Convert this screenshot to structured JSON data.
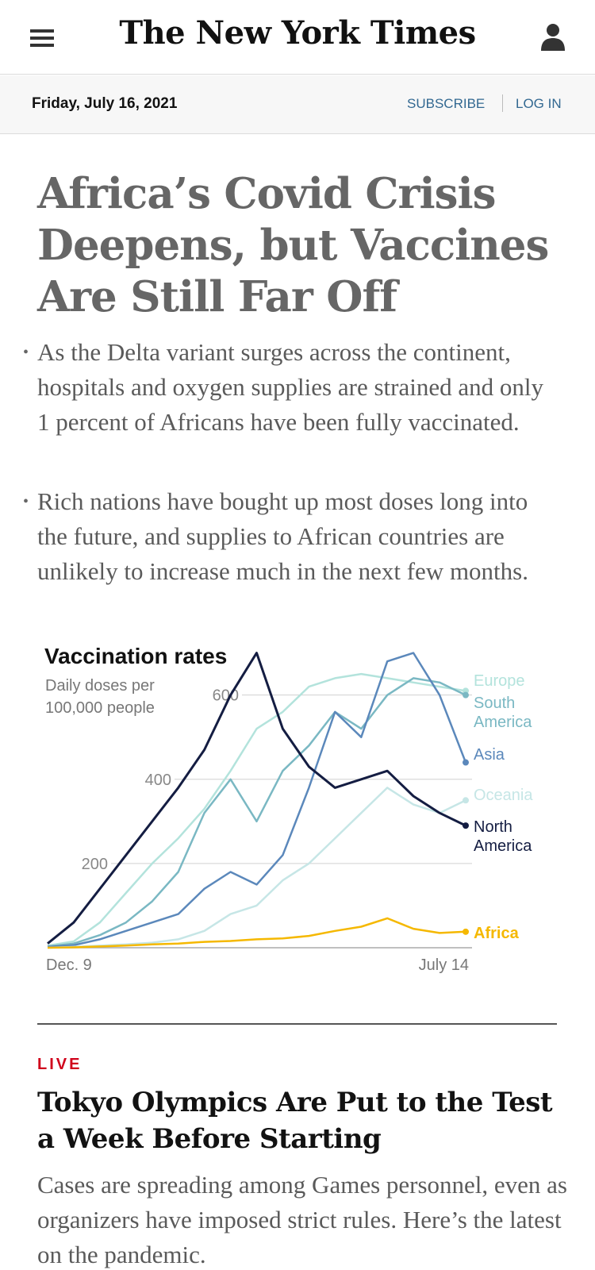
{
  "header": {
    "logo": "The New York Times",
    "menu_icon": "hamburger-menu-icon",
    "user_icon": "user-account-icon"
  },
  "datebar": {
    "date": "Friday, July 16, 2021",
    "subscribe_label": "SUBSCRIBE",
    "login_label": "LOG IN"
  },
  "story1": {
    "headline": "Africa’s Covid Crisis Deepens, but Vaccines Are Still Far Off",
    "summary": [
      "As the Delta variant surges across the continent, hospitals and oxygen supplies are strained and only 1 percent of Africans have been fully vaccinated.",
      "Rich nations have bought up most doses long into the future, and supplies to African countries are unlikely to increase much in the next few months."
    ]
  },
  "chart_data": {
    "type": "line",
    "title": "Vaccination rates",
    "ylabel": "Daily doses per 100,000 people",
    "y_ticks": [
      200,
      400,
      600
    ],
    "ylim": [
      0,
      720
    ],
    "x_tick_labels": [
      "Dec. 9",
      "July 14"
    ],
    "x": [
      "Dec. 9",
      "Dec. 23",
      "Jan. 6",
      "Jan. 20",
      "Feb. 3",
      "Feb. 17",
      "Mar. 3",
      "Mar. 17",
      "Mar. 31",
      "Apr. 14",
      "Apr. 28",
      "May 12",
      "May 26",
      "June 9",
      "June 23",
      "July 7",
      "July 14"
    ],
    "grid": true,
    "series": [
      {
        "name": "Europe",
        "color": "#b3e3dc",
        "values": [
          5,
          15,
          60,
          130,
          200,
          260,
          330,
          420,
          520,
          560,
          620,
          640,
          650,
          640,
          630,
          620,
          610
        ]
      },
      {
        "name": "South America",
        "color": "#7ab8c3",
        "values": [
          3,
          10,
          30,
          60,
          110,
          180,
          320,
          400,
          300,
          420,
          480,
          560,
          520,
          600,
          640,
          630,
          600
        ]
      },
      {
        "name": "Asia",
        "color": "#5b88bb",
        "values": [
          2,
          6,
          20,
          40,
          60,
          80,
          140,
          180,
          150,
          220,
          380,
          560,
          500,
          680,
          700,
          600,
          440
        ]
      },
      {
        "name": "Oceania",
        "color": "#c6e6e6",
        "values": [
          0,
          2,
          5,
          8,
          12,
          20,
          40,
          80,
          100,
          160,
          200,
          260,
          320,
          380,
          340,
          320,
          350
        ]
      },
      {
        "name": "North America",
        "color": "#141d42",
        "values": [
          10,
          60,
          140,
          220,
          300,
          380,
          470,
          600,
          700,
          520,
          430,
          380,
          400,
          420,
          360,
          320,
          290
        ]
      },
      {
        "name": "Africa",
        "color": "#f5b800",
        "values": [
          0,
          1,
          3,
          5,
          8,
          10,
          14,
          16,
          20,
          22,
          28,
          40,
          50,
          70,
          45,
          35,
          38
        ]
      }
    ],
    "label_positions": {
      "Europe": "top",
      "Oceania": "middle",
      "Africa": "bottom"
    }
  },
  "story2": {
    "live_label": "LIVE",
    "headline": "Tokyo Olympics Are Put to the Test a Week Before Starting",
    "summary": "Cases are spreading among Games personnel, even as organizers have imposed strict rules. Here’s the latest on the pandemic."
  }
}
